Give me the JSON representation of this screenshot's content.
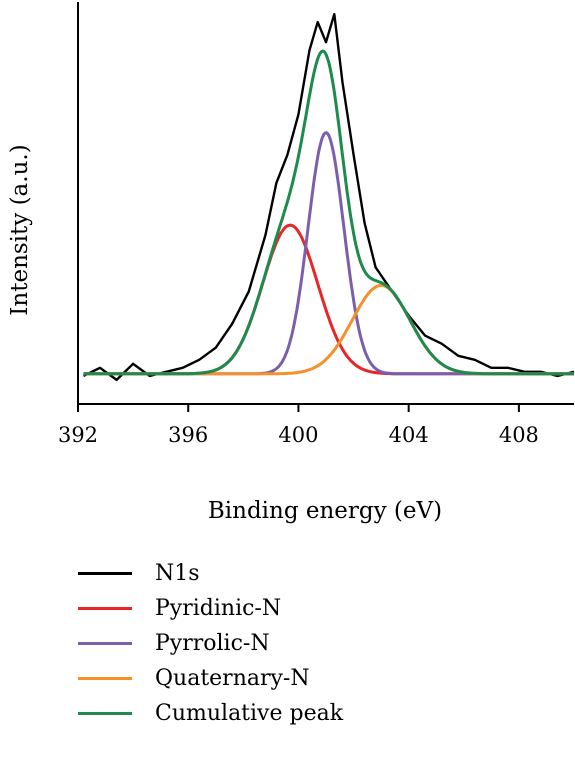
{
  "chart_data": {
    "type": "line",
    "title": "",
    "xlabel": "Binding energy (eV)",
    "ylabel": "Intensity (a.u.)",
    "xlim": [
      392,
      410
    ],
    "ylim": [
      0,
      1.0
    ],
    "xticks": [
      392,
      396,
      400,
      404,
      408
    ],
    "xtick_labels": [
      "392",
      "396",
      "400",
      "404",
      "408"
    ],
    "y_tick_labels_shown": false,
    "grid": false,
    "legend_position": "bottom",
    "baseline": 0.075,
    "series": [
      {
        "name": "N1s",
        "color": "#000000",
        "type": "noisy-data",
        "x": [
          392.2,
          392.8,
          393.4,
          394.0,
          394.6,
          395.2,
          395.8,
          396.4,
          397.0,
          397.6,
          398.2,
          398.8,
          399.2,
          399.6,
          400.0,
          400.4,
          400.7,
          401.0,
          401.3,
          401.6,
          402.0,
          402.4,
          402.8,
          403.2,
          403.6,
          404.0,
          404.6,
          405.2,
          405.8,
          406.4,
          407.0,
          407.6,
          408.2,
          408.8,
          409.4,
          410.0
        ],
        "y": [
          0.07,
          0.09,
          0.06,
          0.1,
          0.07,
          0.08,
          0.09,
          0.11,
          0.14,
          0.2,
          0.28,
          0.42,
          0.55,
          0.62,
          0.72,
          0.88,
          0.95,
          0.9,
          0.97,
          0.8,
          0.62,
          0.45,
          0.34,
          0.3,
          0.26,
          0.22,
          0.17,
          0.15,
          0.12,
          0.11,
          0.09,
          0.09,
          0.08,
          0.08,
          0.07,
          0.08
        ]
      },
      {
        "name": "Pyridinic-N",
        "color": "#e8262a",
        "type": "gaussian",
        "center": 399.7,
        "sigma": 1.0,
        "amplitude": 0.37
      },
      {
        "name": "Pyrrolic-N",
        "color": "#7b5fad",
        "type": "gaussian",
        "center": 401.0,
        "sigma": 0.65,
        "amplitude": 0.6
      },
      {
        "name": "Quaternary-N",
        "color": "#f5902a",
        "type": "gaussian",
        "center": 403.0,
        "sigma": 1.05,
        "amplitude": 0.22
      },
      {
        "name": "Cumulative peak",
        "color": "#1e8a4c",
        "type": "sum"
      }
    ]
  },
  "legend": {
    "items": [
      {
        "label": "N1s",
        "color": "#000000"
      },
      {
        "label": "Pyridinic-N",
        "color": "#e8262a"
      },
      {
        "label": "Pyrrolic-N",
        "color": "#7b5fad"
      },
      {
        "label": "Quaternary-N",
        "color": "#f5902a"
      },
      {
        "label": "Cumulative peak",
        "color": "#1e8a4c"
      }
    ]
  }
}
